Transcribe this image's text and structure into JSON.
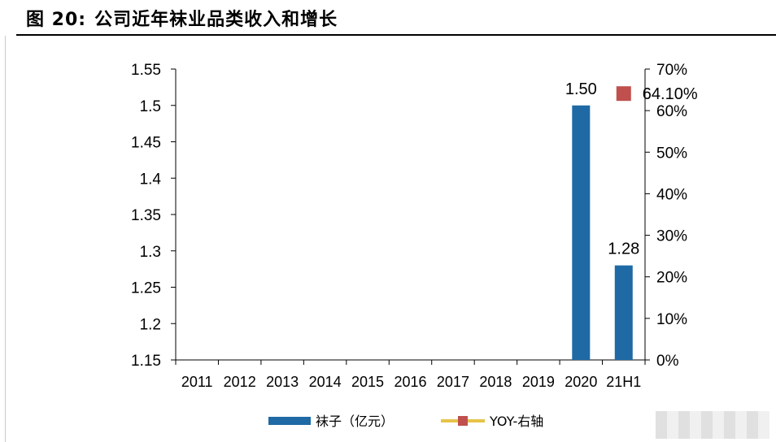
{
  "figure": {
    "number": "图 20:",
    "title": "公司近年袜业品类收入和增长"
  },
  "chart_data": {
    "type": "bar",
    "categories": [
      "2011",
      "2012",
      "2013",
      "2014",
      "2015",
      "2016",
      "2017",
      "2018",
      "2019",
      "2020",
      "21H1"
    ],
    "series": [
      {
        "name": "袜子（亿元）",
        "type": "bar",
        "axis": "left",
        "color": "#1f6aa5",
        "values": [
          null,
          null,
          null,
          null,
          null,
          null,
          null,
          null,
          null,
          1.5,
          1.28
        ],
        "labels": [
          null,
          null,
          null,
          null,
          null,
          null,
          null,
          null,
          null,
          "1.50",
          "1.28"
        ]
      },
      {
        "name": "YOY-右轴",
        "type": "line",
        "axis": "right",
        "color": "#e6c34a",
        "marker_color": "#c0504d",
        "values": [
          null,
          null,
          null,
          null,
          null,
          null,
          null,
          null,
          null,
          null,
          0.641
        ],
        "labels": [
          null,
          null,
          null,
          null,
          null,
          null,
          null,
          null,
          null,
          null,
          "64.10%"
        ]
      }
    ],
    "y_left": {
      "min": 1.15,
      "max": 1.55,
      "ticks": [
        1.15,
        1.2,
        1.25,
        1.3,
        1.35,
        1.4,
        1.45,
        1.5,
        1.55
      ],
      "tick_labels": [
        "1.15",
        "1.2",
        "1.25",
        "1.3",
        "1.35",
        "1.4",
        "1.45",
        "1.5",
        "1.55"
      ]
    },
    "y_right": {
      "min": 0,
      "max": 0.7,
      "ticks": [
        0,
        0.1,
        0.2,
        0.3,
        0.4,
        0.5,
        0.6,
        0.7
      ],
      "tick_labels": [
        "0%",
        "10%",
        "20%",
        "30%",
        "40%",
        "50%",
        "60%",
        "70%"
      ]
    },
    "grid": false,
    "legend_position": "bottom"
  }
}
